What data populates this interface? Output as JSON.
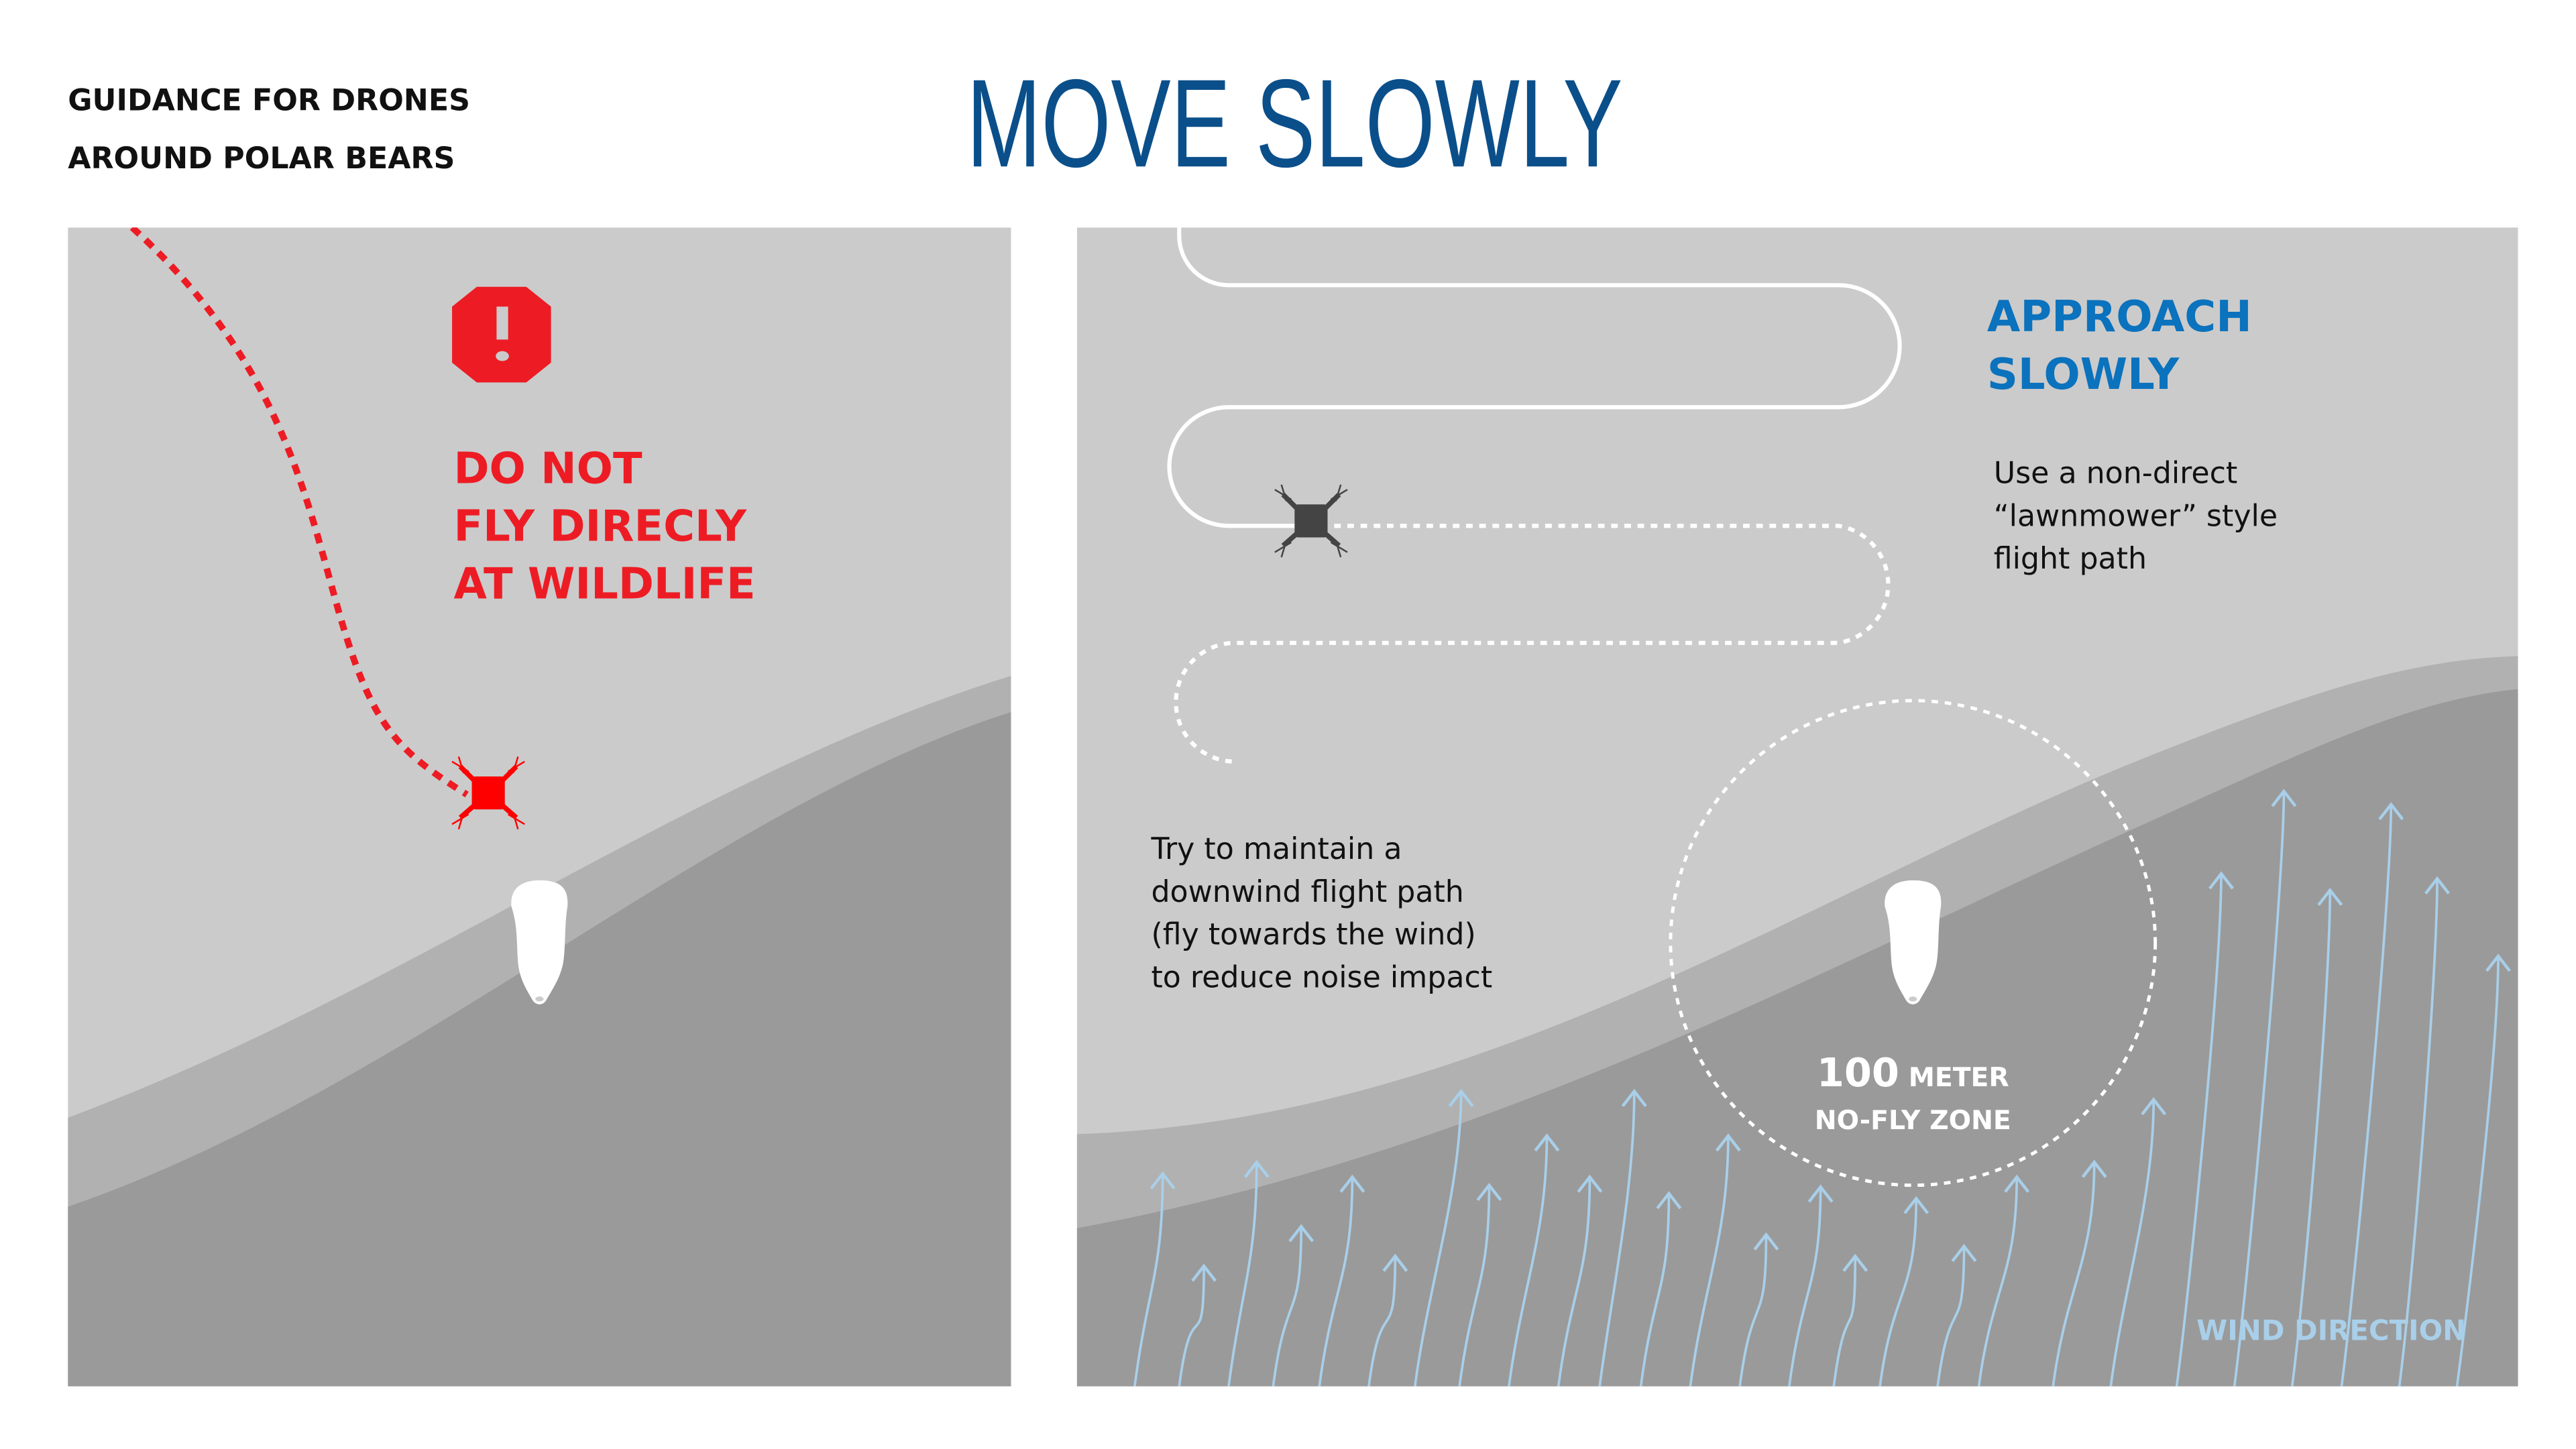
{
  "header": {
    "subtitle_lines": [
      "GUIDANCE FOR DRONES",
      "AROUND POLAR BEARS"
    ],
    "title": "MOVE SLOWLY"
  },
  "left_panel": {
    "warning_icon": "stop-sign-exclamation-icon",
    "warning_lines": [
      "DO NOT",
      "FLY DIRECLY",
      "AT WILDLIFE"
    ]
  },
  "right_panel": {
    "heading_lines": [
      "APPROACH",
      "SLOWLY"
    ],
    "path_note_lines": [
      "Use a non-direct",
      "“lawnmower” style",
      "flight path"
    ],
    "wind_note_lines": [
      "Try to maintain a",
      "downwind flight path",
      "(fly towards the wind)",
      "to reduce noise impact"
    ],
    "zone_number": "100",
    "zone_unit": "METER",
    "zone_label": "NO-FLY ZONE",
    "wind_label": "WIND DIRECTION"
  },
  "colors": {
    "title_blue": "#0b4f8a",
    "heading_blue": "#0b72bd",
    "warning_red": "#ed1c24",
    "sky": "#cbcbcb",
    "terrain_light": "#b1b1b1",
    "terrain_dark": "#9a9a9a",
    "wind_blue": "#a9cfe9"
  }
}
